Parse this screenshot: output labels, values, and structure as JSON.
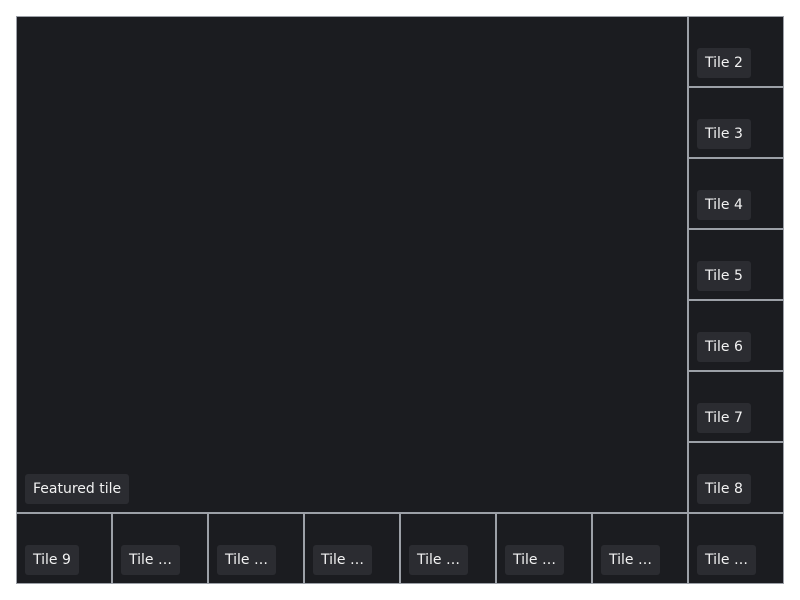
{
  "tiles": {
    "featured": {
      "label": "Featured tile"
    },
    "t2": {
      "label": "Tile 2"
    },
    "t3": {
      "label": "Tile 3"
    },
    "t4": {
      "label": "Tile 4"
    },
    "t5": {
      "label": "Tile 5"
    },
    "t6": {
      "label": "Tile 6"
    },
    "t7": {
      "label": "Tile 7"
    },
    "t8": {
      "label": "Tile 8"
    },
    "t9": {
      "label": "Tile 9"
    },
    "t10": {
      "label": "Tile …"
    },
    "t11": {
      "label": "Tile …"
    },
    "t12": {
      "label": "Tile …"
    },
    "t13": {
      "label": "Tile …"
    },
    "t14": {
      "label": "Tile …"
    },
    "t15": {
      "label": "Tile …"
    },
    "t16": {
      "label": "Tile …"
    }
  },
  "colors": {
    "tile_background": "#1b1c20",
    "label_background": "#2b2c31",
    "label_text": "#f2f2f2",
    "grid_lines": "#9ca0a7"
  }
}
